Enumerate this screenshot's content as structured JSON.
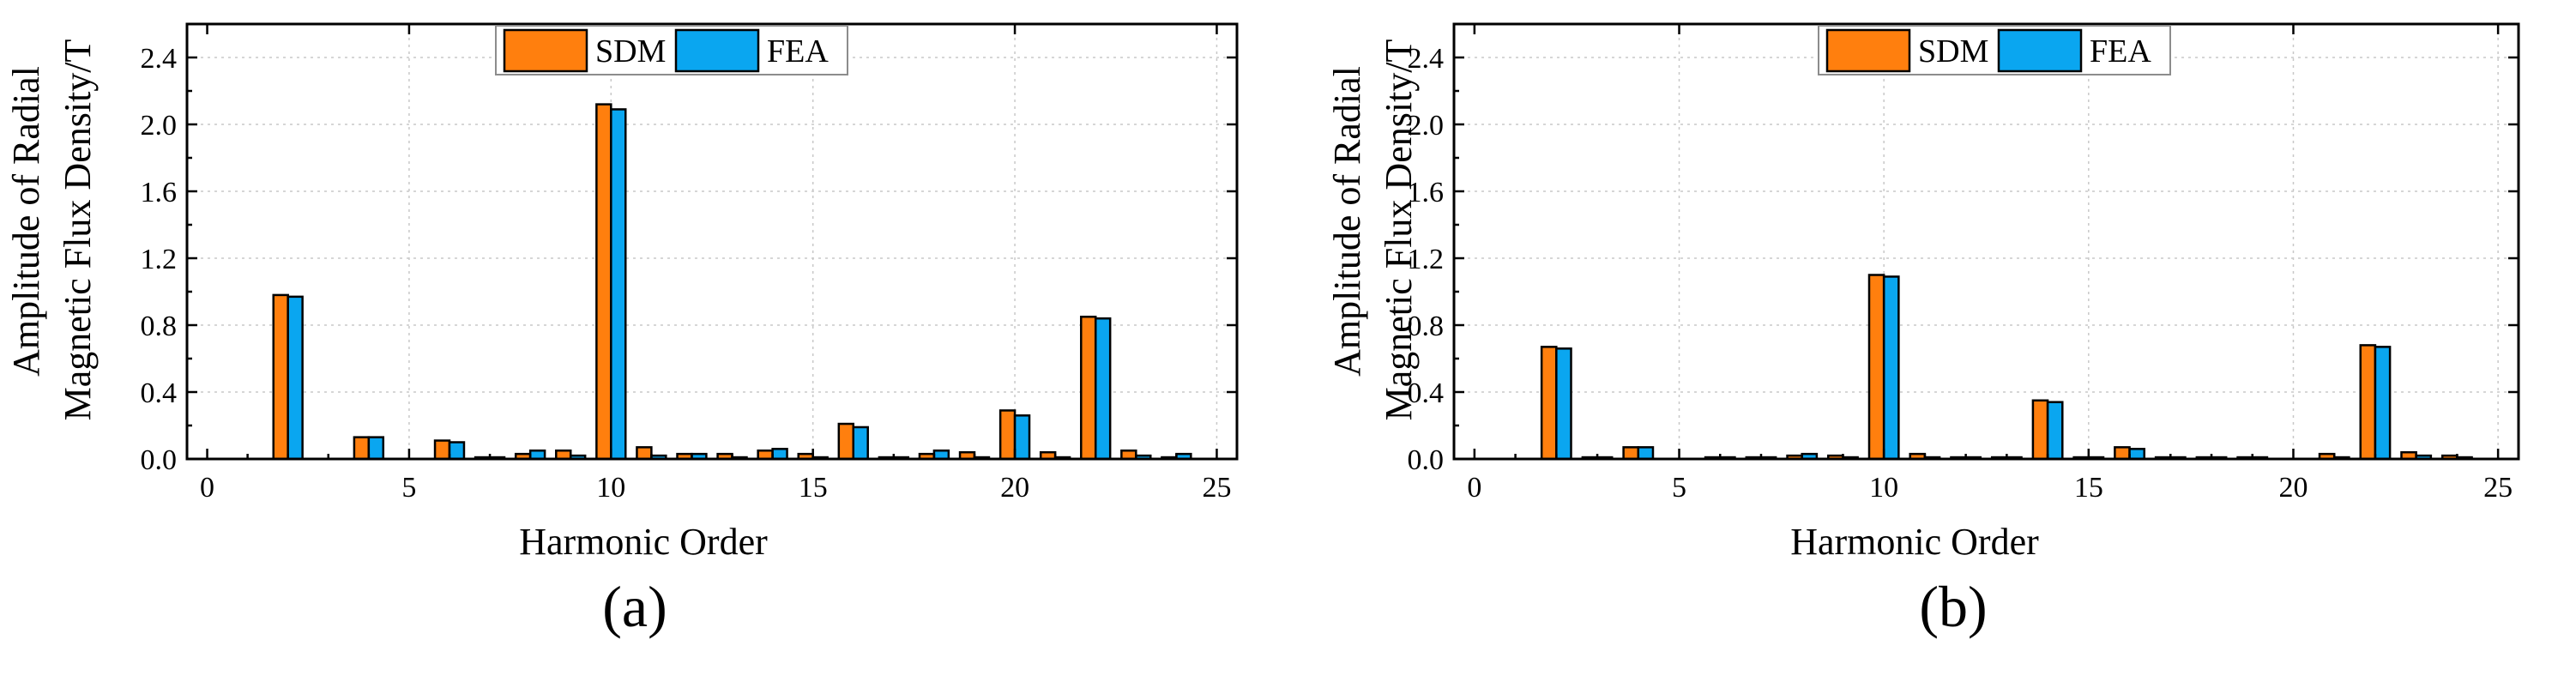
{
  "colors": {
    "sdm": "#ff7f0e",
    "fea": "#0aa6f0",
    "grid": "#c8c8c8",
    "axis": "#000000"
  },
  "chart_data": [
    {
      "type": "bar",
      "panel_label": "(a)",
      "xlabel": "Harmonic Order",
      "ylabel_line1": "Amplitude of Radial",
      "ylabel_line2": "Magnetic Flux Density/T",
      "xlim": [
        -0.5,
        25.5
      ],
      "ylim": [
        0,
        2.6
      ],
      "xticks": [
        0,
        5,
        10,
        15,
        20,
        25
      ],
      "xtick_labels": [
        "0",
        "5",
        "10",
        "15",
        "20",
        "25"
      ],
      "yticks": [
        0,
        0.4,
        0.8,
        1.2,
        1.6,
        2.0,
        2.4
      ],
      "ytick_labels": [
        "0.0",
        "0.4",
        "0.8",
        "1.2",
        "1.6",
        "2.0",
        "2.4"
      ],
      "grid": true,
      "legend_position": "top-center",
      "categories": [
        1,
        2,
        3,
        4,
        5,
        6,
        7,
        8,
        9,
        10,
        11,
        12,
        13,
        14,
        15,
        16,
        17,
        18,
        19,
        20,
        21,
        22,
        23,
        24,
        25
      ],
      "series": [
        {
          "name": "SDM",
          "values": [
            0,
            0.98,
            0,
            0.13,
            0,
            0.11,
            0.01,
            0.03,
            0.05,
            2.12,
            0.07,
            0.03,
            0.03,
            0.05,
            0.03,
            0.21,
            0.01,
            0.03,
            0.04,
            0.29,
            0.04,
            0.85,
            0.05,
            0.01,
            0
          ]
        },
        {
          "name": "FEA",
          "values": [
            0,
            0.97,
            0,
            0.13,
            0,
            0.1,
            0.01,
            0.05,
            0.02,
            2.09,
            0.02,
            0.03,
            0.01,
            0.06,
            0.01,
            0.19,
            0.01,
            0.05,
            0.01,
            0.26,
            0.01,
            0.84,
            0.02,
            0.03,
            0
          ]
        }
      ]
    },
    {
      "type": "bar",
      "panel_label": "(b)",
      "xlabel": "Harmonic Order",
      "ylabel_line1": "Amplitude of Radial",
      "ylabel_line2": "Magnetic Flux Density/T",
      "xlim": [
        -0.5,
        25.5
      ],
      "ylim": [
        0,
        2.6
      ],
      "xticks": [
        0,
        5,
        10,
        15,
        20,
        25
      ],
      "xtick_labels": [
        "0",
        "5",
        "10",
        "15",
        "20",
        "25"
      ],
      "yticks": [
        0,
        0.4,
        0.8,
        1.2,
        1.6,
        2.0,
        2.4
      ],
      "ytick_labels": [
        "0.0",
        "0.4",
        "0.8",
        "1.2",
        "1.6",
        "2.0",
        "2.4"
      ],
      "grid": true,
      "legend_position": "top-center",
      "categories": [
        1,
        2,
        3,
        4,
        5,
        6,
        7,
        8,
        9,
        10,
        11,
        12,
        13,
        14,
        15,
        16,
        17,
        18,
        19,
        20,
        21,
        22,
        23,
        24,
        25
      ],
      "series": [
        {
          "name": "SDM",
          "values": [
            0,
            0.67,
            0.01,
            0.07,
            0,
            0.01,
            0.01,
            0.02,
            0.02,
            1.1,
            0.03,
            0.01,
            0.01,
            0.35,
            0.01,
            0.07,
            0.01,
            0.01,
            0.01,
            0,
            0.03,
            0.68,
            0.04,
            0.02,
            0
          ]
        },
        {
          "name": "FEA",
          "values": [
            0,
            0.66,
            0.01,
            0.07,
            0,
            0.01,
            0.01,
            0.03,
            0.01,
            1.09,
            0.01,
            0.01,
            0.01,
            0.34,
            0.01,
            0.06,
            0.01,
            0.01,
            0.01,
            0,
            0.01,
            0.67,
            0.02,
            0.01,
            0
          ]
        }
      ]
    }
  ]
}
